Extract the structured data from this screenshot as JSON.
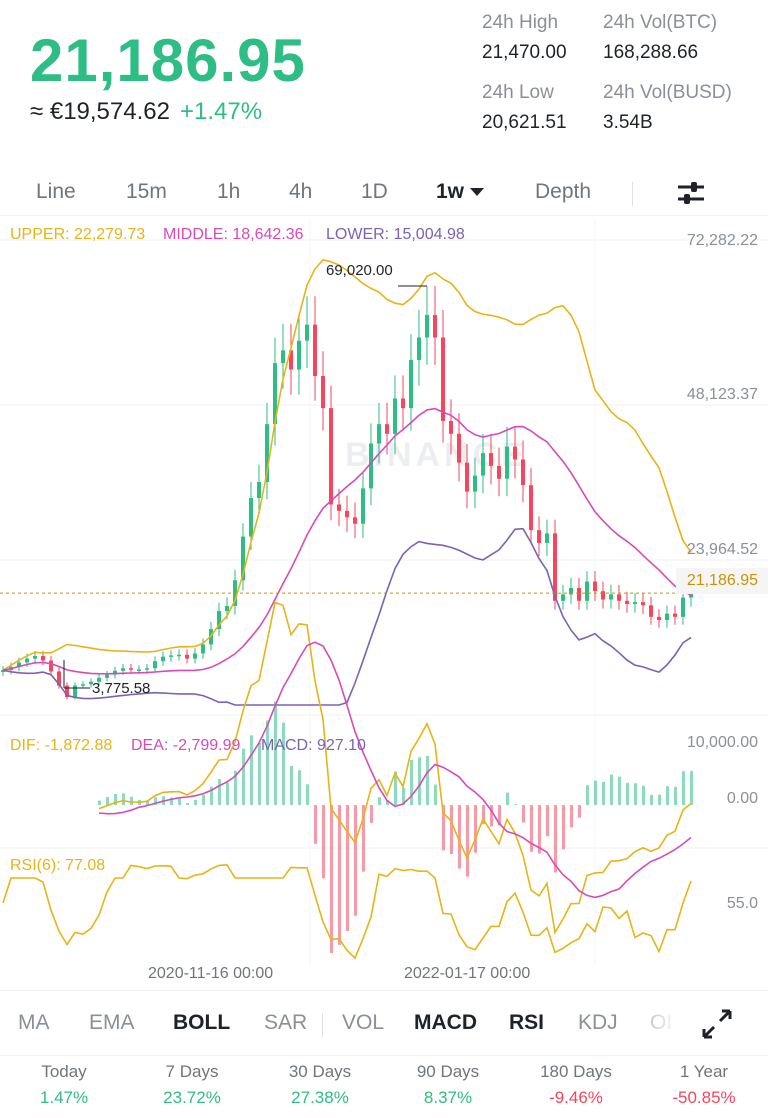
{
  "ticker": {
    "last_price": "21,186.95",
    "fiat_value": "≈ €19,574.62",
    "change_pct": "+1.47%",
    "stats": [
      {
        "label": "24h High",
        "value": "21,470.00"
      },
      {
        "label": "24h Vol(BTC)",
        "value": "168,288.66"
      },
      {
        "label": "24h Low",
        "value": "20,621.51"
      },
      {
        "label": "24h Vol(BUSD)",
        "value": "3.54B"
      }
    ]
  },
  "timeframe_tabs": [
    {
      "label": "Line"
    },
    {
      "label": "15m"
    },
    {
      "label": "1h"
    },
    {
      "label": "4h"
    },
    {
      "label": "1D"
    },
    {
      "label": "1w",
      "active": true
    },
    {
      "label": "Depth"
    }
  ],
  "settings_icon": "sliders-icon",
  "watermark": "BINANCE",
  "colors": {
    "green": "#2ebd85",
    "red": "#f6465d",
    "upper": "#e7b416",
    "middle": "#d94ab8",
    "lower": "#7b62b3"
  },
  "boll_legend": {
    "upper": "UPPER: 22,279.73",
    "middle": "MIDDLE: 18,642.36",
    "lower": "LOWER: 15,004.98"
  },
  "macd_legend": {
    "dif": "DIF: -1,872.88",
    "dea": "DEA: -2,799.99",
    "macd": "MACD: 927.10"
  },
  "rsi_legend": "RSI(6): 77.08",
  "price_axis": [
    "72,282.22",
    "48,123.37",
    "23,964.52"
  ],
  "current_price_tag": "21,186.95",
  "macd_axis": [
    "10,000.00",
    "0.00"
  ],
  "rsi_axis": [
    "55.0"
  ],
  "high_marker": "69,020.00",
  "low_marker": "3,775.58",
  "x_axis": [
    "2020-11-16 00:00",
    "2022-01-17 00:00"
  ],
  "indicator_tabs": [
    {
      "label": "MA"
    },
    {
      "label": "EMA"
    },
    {
      "label": "BOLL",
      "active": true
    },
    {
      "label": "SAR"
    },
    {
      "label": "VOL"
    },
    {
      "label": "MACD",
      "active": true
    },
    {
      "label": "RSI",
      "active": true
    },
    {
      "label": "KDJ"
    },
    {
      "label": "OI"
    }
  ],
  "expand_icon": "expand-arrows-icon",
  "performance": [
    {
      "label": "Today",
      "value": "1.47%",
      "dir": "pos"
    },
    {
      "label": "7 Days",
      "value": "23.72%",
      "dir": "pos"
    },
    {
      "label": "30 Days",
      "value": "27.38%",
      "dir": "pos"
    },
    {
      "label": "90 Days",
      "value": "8.37%",
      "dir": "pos"
    },
    {
      "label": "180 Days",
      "value": "-9.46%",
      "dir": "neg"
    },
    {
      "label": "1 Year",
      "value": "-50.85%",
      "dir": "neg"
    }
  ],
  "chart_data": [
    {
      "type": "candlestick",
      "title": "",
      "interval": "1w",
      "ylim": [
        3775.58,
        72282.22
      ],
      "y_ticks": [
        72282.22,
        48123.37,
        23964.52
      ],
      "x_ticks": [
        "2020-11-16 00:00",
        "2022-01-17 00:00"
      ],
      "close_series": [
        [
          0,
          9200
        ],
        [
          8,
          9700
        ],
        [
          16,
          10400
        ],
        [
          24,
          11000
        ],
        [
          32,
          11400
        ],
        [
          40,
          10700
        ],
        [
          48,
          9000
        ],
        [
          56,
          6800
        ],
        [
          64,
          5000
        ],
        [
          72,
          6800
        ],
        [
          80,
          7000
        ],
        [
          88,
          7400
        ],
        [
          96,
          8000
        ],
        [
          104,
          8500
        ],
        [
          112,
          9100
        ],
        [
          120,
          9500
        ],
        [
          128,
          9300
        ],
        [
          136,
          9300
        ],
        [
          144,
          9500
        ],
        [
          152,
          10600
        ],
        [
          160,
          11300
        ],
        [
          168,
          11500
        ],
        [
          176,
          11600
        ],
        [
          184,
          11000
        ],
        [
          192,
          11800
        ],
        [
          200,
          13200
        ],
        [
          208,
          15600
        ],
        [
          216,
          18400
        ],
        [
          224,
          19200
        ],
        [
          232,
          23200
        ],
        [
          240,
          30000
        ],
        [
          248,
          36000
        ],
        [
          256,
          38500
        ],
        [
          264,
          47500
        ],
        [
          272,
          57000
        ],
        [
          280,
          59000
        ],
        [
          288,
          56000
        ],
        [
          296,
          60500
        ],
        [
          304,
          63000
        ],
        [
          312,
          55000
        ],
        [
          320,
          50000
        ],
        [
          328,
          35000
        ],
        [
          336,
          34000
        ],
        [
          344,
          33000
        ],
        [
          352,
          32000
        ],
        [
          360,
          37500
        ],
        [
          368,
          44500
        ],
        [
          376,
          47500
        ],
        [
          384,
          46000
        ],
        [
          392,
          51500
        ],
        [
          400,
          50000
        ],
        [
          408,
          57500
        ],
        [
          416,
          61000
        ],
        [
          424,
          64500
        ],
        [
          432,
          61000
        ],
        [
          440,
          48000
        ],
        [
          448,
          46000
        ],
        [
          456,
          41500
        ],
        [
          464,
          37000
        ],
        [
          472,
          39500
        ],
        [
          480,
          43000
        ],
        [
          488,
          41000
        ],
        [
          496,
          39000
        ],
        [
          504,
          44000
        ],
        [
          512,
          42000
        ],
        [
          520,
          38000
        ],
        [
          528,
          31000
        ],
        [
          536,
          29000
        ],
        [
          544,
          30500
        ],
        [
          552,
          20000
        ],
        [
          560,
          21000
        ],
        [
          568,
          22000
        ],
        [
          576,
          20000
        ],
        [
          584,
          23000
        ],
        [
          592,
          21500
        ],
        [
          600,
          20200
        ],
        [
          608,
          21000
        ],
        [
          616,
          20000
        ],
        [
          624,
          19500
        ],
        [
          632,
          19800
        ],
        [
          640,
          19300
        ],
        [
          648,
          17500
        ],
        [
          656,
          17000
        ],
        [
          664,
          18000
        ],
        [
          672,
          17500
        ],
        [
          680,
          20500
        ],
        [
          688,
          21186.95
        ]
      ],
      "high": 69020.0,
      "low": 3775.58,
      "last": 21186.95
    },
    {
      "type": "line",
      "title": "BOLL",
      "series": [
        {
          "name": "UPPER",
          "last": 22279.73
        },
        {
          "name": "MIDDLE",
          "last": 18642.36
        },
        {
          "name": "LOWER",
          "last": 15004.98
        }
      ]
    },
    {
      "type": "line+bar",
      "title": "MACD",
      "y_ticks": [
        10000.0,
        0.0
      ],
      "series": [
        {
          "name": "DIF",
          "last": -1872.88
        },
        {
          "name": "DEA",
          "last": -2799.99
        },
        {
          "name": "MACD",
          "last": 927.1
        }
      ]
    },
    {
      "type": "line",
      "title": "RSI",
      "y_ticks": [
        55.0
      ],
      "series": [
        {
          "name": "RSI(6)",
          "last": 77.08
        }
      ]
    }
  ]
}
